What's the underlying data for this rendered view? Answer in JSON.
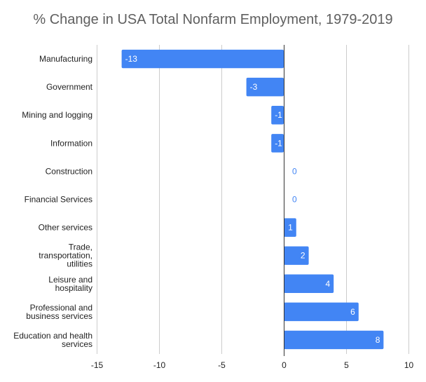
{
  "chart_data": {
    "type": "bar",
    "orientation": "horizontal",
    "title": "% Change in USA Total Nonfarm Employment, 1979-2019",
    "xlabel": "",
    "ylabel": "",
    "categories": [
      "Manufacturing",
      "Government",
      "Mining and logging",
      "Information",
      "Construction",
      "Financial Services",
      "Other services",
      "Trade, transportation, utilities",
      "Leisure and hospitality",
      "Professional and business services",
      "Education and health services"
    ],
    "category_lines": [
      [
        "Manufacturing"
      ],
      [
        "Government"
      ],
      [
        "Mining and logging"
      ],
      [
        "Information"
      ],
      [
        "Construction"
      ],
      [
        "Financial Services"
      ],
      [
        "Other services"
      ],
      [
        "Trade,",
        "transportation,",
        "utilities"
      ],
      [
        "Leisure and",
        "hospitality"
      ],
      [
        "Professional and",
        "business services"
      ],
      [
        "Education and health",
        "services"
      ]
    ],
    "values": [
      -13,
      -3,
      -1,
      -1,
      0,
      0,
      1,
      2,
      4,
      6,
      8
    ],
    "data_labels": [
      "-13",
      "-3",
      "-1",
      "-1",
      "0",
      "0",
      "1",
      "2",
      "4",
      "6",
      "8"
    ],
    "xlim": [
      -15,
      10
    ],
    "xticks": [
      -15,
      -10,
      -5,
      0,
      5,
      10
    ],
    "xtick_labels": [
      "-15",
      "-10",
      "-5",
      "0",
      "5",
      "10"
    ],
    "grid": true,
    "legend": "none",
    "colors": {
      "bar": "#4285f4",
      "grid": "#cccccc",
      "zero_line": "#333333",
      "label_inside": "#ffffff",
      "label_outside": "#4285f4"
    }
  }
}
